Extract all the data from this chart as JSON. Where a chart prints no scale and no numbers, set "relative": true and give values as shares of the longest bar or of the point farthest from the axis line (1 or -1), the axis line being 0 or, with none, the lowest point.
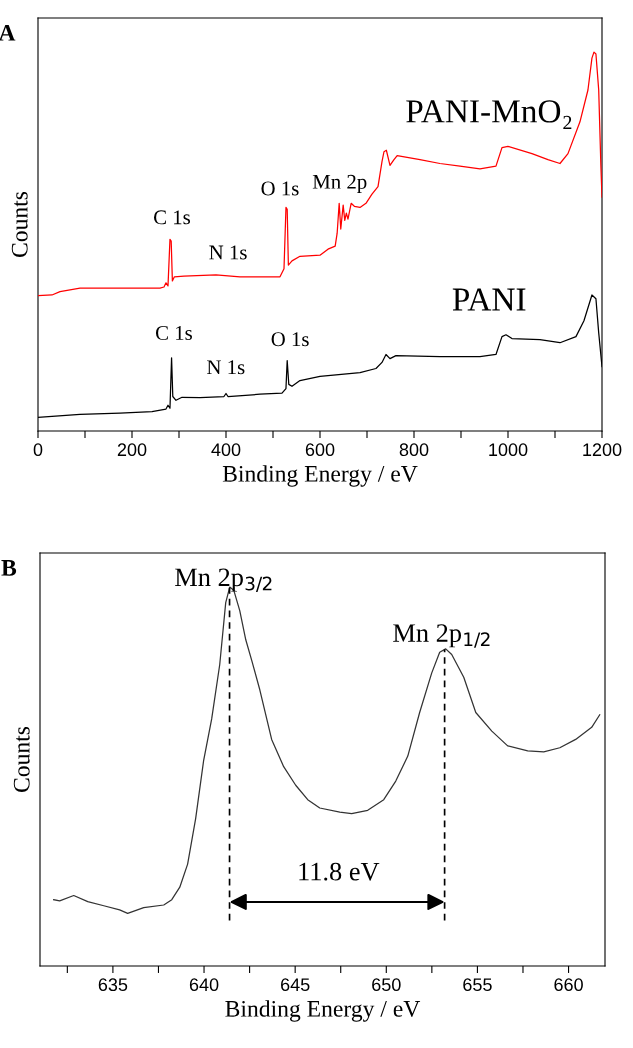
{
  "chart_data": [
    {
      "type": "line",
      "title": "A",
      "xlabel": "Binding Energy / eV",
      "ylabel": "Counts",
      "relative": true,
      "grid": false,
      "legend": false,
      "marker": "none",
      "line_style": "solid",
      "xlim": [
        0,
        1200
      ],
      "xticks": [
        0,
        {
          "value": 100,
          "label": null
        },
        200,
        {
          "value": 300,
          "label": null
        },
        400,
        {
          "value": 500,
          "label": null
        },
        600,
        {
          "value": 700,
          "label": null
        },
        800,
        {
          "value": 900,
          "label": null
        },
        1000,
        {
          "value": 1100,
          "label": null
        },
        1200
      ],
      "series": [
        {
          "name": "PANI-MnO₂",
          "color": "#ff0000",
          "x": [
            0,
            29.8,
            46.8,
            89.4,
            174.5,
            259.6,
            268.1,
            272.3,
            276.6,
            280.8,
            283.4,
            285.9,
            290.2,
            310.6,
            378.7,
            429.7,
            514.9,
            523.4,
            527.6,
            530.2,
            532.7,
            540.4,
            557.4,
            600,
            617,
            632.3,
            636.5,
            640.8,
            644.2,
            649.3,
            652.7,
            656.1,
            659.5,
            666.3,
            673.1,
            685.1,
            697.8,
            710.6,
            723.4,
            731.9,
            736.1,
            741.2,
            748.9,
            757.4,
            764.2,
            812.7,
            855.2,
            897.8,
            940.4,
            974.4,
            987.2,
            1000,
            1051,
            1085,
            1110.6,
            1127.6,
            1153.1,
            1170.1,
            1178.6,
            1182.9,
            1187.1,
            1193,
            1197.6,
            1200
          ],
          "values": [
            0.357,
            0.359,
            0.368,
            0.377,
            0.377,
            0.377,
            0.38,
            0.391,
            0.383,
            0.506,
            0.501,
            0.396,
            0.407,
            0.409,
            0.412,
            0.407,
            0.407,
            0.428,
            0.59,
            0.585,
            0.438,
            0.449,
            0.461,
            0.464,
            0.48,
            0.488,
            0.522,
            0.601,
            0.533,
            0.596,
            0.556,
            0.575,
            0.559,
            0.601,
            0.593,
            0.59,
            0.601,
            0.625,
            0.645,
            0.711,
            0.737,
            0.741,
            0.701,
            0.716,
            0.727,
            0.716,
            0.706,
            0.699,
            0.692,
            0.699,
            0.748,
            0.751,
            0.732,
            0.716,
            0.706,
            0.732,
            0.816,
            0.9,
            0.984,
            1.0,
            0.995,
            0.9,
            0.7,
            0.617
          ]
        },
        {
          "name": "PANI",
          "color": "#000000",
          "x": [
            0,
            89.4,
            174.5,
            242.6,
            272.3,
            276.6,
            280.8,
            284.2,
            286.8,
            293.6,
            306.4,
            344.7,
            395.7,
            400,
            404.2,
            472.3,
            519.1,
            527.6,
            530.2,
            533.6,
            540.4,
            557.4,
            600,
            685.1,
            719.1,
            731.9,
            740.4,
            748.9,
            761.6,
            855.2,
            940.4,
            974.4,
            987.2,
            995.7,
            1008.4,
            1068,
            1110.6,
            1144.6,
            1161.6,
            1178.6,
            1187.1,
            1193,
            1200
          ],
          "values": [
            0.036,
            0.044,
            0.047,
            0.051,
            0.058,
            0.068,
            0.06,
            0.193,
            0.091,
            0.081,
            0.089,
            0.088,
            0.091,
            0.099,
            0.091,
            0.097,
            0.1,
            0.112,
            0.186,
            0.123,
            0.118,
            0.133,
            0.144,
            0.154,
            0.165,
            0.181,
            0.202,
            0.191,
            0.199,
            0.196,
            0.196,
            0.202,
            0.249,
            0.254,
            0.244,
            0.241,
            0.233,
            0.249,
            0.291,
            0.359,
            0.349,
            0.259,
            0.17
          ]
        }
      ],
      "annotations": [
        "C 1s",
        "N 1s",
        "O 1s",
        "Mn 2p",
        "C 1s",
        "N 1s",
        "O 1s"
      ]
    },
    {
      "type": "line",
      "title": "B",
      "xlabel": "Binding Energy / eV",
      "ylabel": "Counts",
      "relative": true,
      "grid": false,
      "legend": false,
      "marker": "none",
      "line_style": "solid",
      "xlim": [
        631,
        662
      ],
      "xticks": [
        {
          "value": 632.5,
          "label": null
        },
        635,
        {
          "value": 637.5,
          "label": null
        },
        640,
        {
          "value": 642.5,
          "label": null
        },
        645,
        {
          "value": 647.5,
          "label": null
        },
        650,
        {
          "value": 652.5,
          "label": null
        },
        655,
        {
          "value": 657.5,
          "label": null
        },
        660
      ],
      "series": [
        {
          "color": "#333333",
          "x": [
            631.75,
            632.08,
            632.85,
            633.62,
            634.5,
            635.37,
            635.81,
            636.69,
            637.79,
            638.23,
            638.67,
            639.1,
            639.54,
            639.98,
            640.42,
            640.86,
            641.19,
            641.41,
            641.63,
            641.96,
            642.29,
            642.62,
            643.06,
            643.71,
            644.37,
            645.03,
            645.69,
            646.35,
            647.45,
            648.1,
            648.98,
            649.86,
            650.52,
            651.18,
            651.83,
            652.49,
            652.93,
            653.26,
            653.59,
            654.25,
            654.91,
            655.79,
            656.66,
            657.76,
            658.64,
            659.52,
            660.39,
            661.27,
            661.71
          ],
          "values": [
            0.175,
            0.172,
            0.186,
            0.17,
            0.159,
            0.148,
            0.139,
            0.154,
            0.161,
            0.175,
            0.208,
            0.269,
            0.389,
            0.543,
            0.652,
            0.795,
            0.959,
            1.0,
            0.992,
            0.938,
            0.861,
            0.806,
            0.729,
            0.598,
            0.526,
            0.477,
            0.439,
            0.417,
            0.406,
            0.402,
            0.411,
            0.439,
            0.488,
            0.554,
            0.669,
            0.773,
            0.828,
            0.837,
            0.822,
            0.762,
            0.669,
            0.62,
            0.581,
            0.568,
            0.565,
            0.576,
            0.598,
            0.63,
            0.663
          ]
        }
      ],
      "ref_lines": [
        {
          "axis": "x",
          "value": 641.4,
          "line_style": "dashed",
          "color": "#000000"
        },
        {
          "axis": "x",
          "value": 653.2,
          "line_style": "dashed",
          "color": "#000000"
        }
      ],
      "annotations": [
        "Mn 2p$_{3/2}$",
        "Mn 2p$_{1/2}$",
        "11.8 eV"
      ]
    }
  ]
}
